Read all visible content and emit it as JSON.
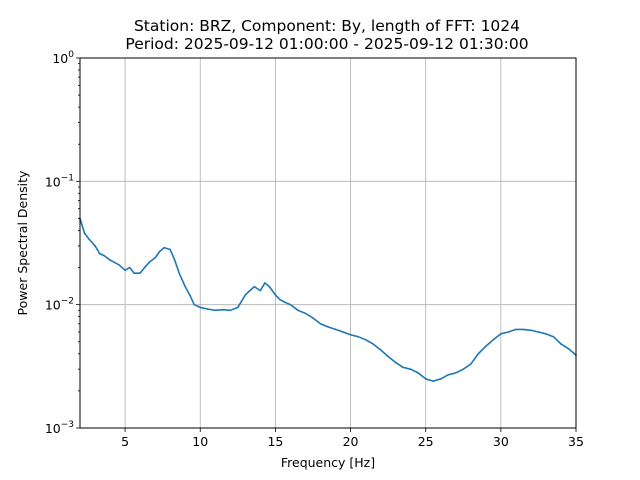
{
  "chart_data": {
    "type": "line",
    "title": "Station: BRZ, Component: By, length of FFT: 1024",
    "subtitle": "Period: 2025-09-12 01:00:00 - 2025-09-12 01:30:00",
    "xlabel": "Frequency [Hz]",
    "ylabel": "Power Spectral Density",
    "xlim": [
      2,
      35
    ],
    "ylim": [
      0.001,
      1
    ],
    "yscale": "log",
    "grid": true,
    "line_color": "#1f77b4",
    "x_ticks": [
      5,
      10,
      15,
      20,
      25,
      30,
      35
    ],
    "x_tick_labels": [
      "5",
      "10",
      "15",
      "20",
      "25",
      "30",
      "35"
    ],
    "y_ticks": [
      0.001,
      0.01,
      0.1,
      1
    ],
    "y_tick_labels": [
      {
        "base": "10",
        "exp": "−3"
      },
      {
        "base": "10",
        "exp": "−2"
      },
      {
        "base": "10",
        "exp": "−1"
      },
      {
        "base": "10",
        "exp": "0"
      }
    ],
    "series": [
      {
        "x": [
          2.0,
          2.3,
          2.6,
          3.0,
          3.3,
          3.6,
          4.0,
          4.3,
          4.6,
          5.0,
          5.3,
          5.6,
          6.0,
          6.3,
          6.6,
          7.0,
          7.3,
          7.6,
          8.0,
          8.3,
          8.6,
          9.0,
          9.3,
          9.6,
          10.0,
          10.5,
          11.0,
          11.5,
          12.0,
          12.5,
          13.0,
          13.3,
          13.6,
          14.0,
          14.3,
          14.6,
          15.0,
          15.3,
          15.6,
          16.0,
          16.5,
          17.0,
          17.5,
          18.0,
          18.5,
          19.0,
          19.5,
          20.0,
          20.5,
          21.0,
          21.5,
          22.0,
          22.5,
          23.0,
          23.5,
          24.0,
          24.5,
          25.0,
          25.5,
          26.0,
          26.5,
          27.0,
          27.5,
          28.0,
          28.5,
          29.0,
          29.5,
          30.0,
          30.5,
          31.0,
          31.5,
          32.0,
          32.5,
          33.0,
          33.5,
          34.0,
          34.5,
          35.0
        ],
        "y": [
          0.05,
          0.038,
          0.034,
          0.03,
          0.026,
          0.025,
          0.023,
          0.022,
          0.021,
          0.019,
          0.02,
          0.018,
          0.018,
          0.02,
          0.022,
          0.024,
          0.027,
          0.029,
          0.028,
          0.023,
          0.018,
          0.014,
          0.012,
          0.01,
          0.0095,
          0.0092,
          0.009,
          0.0091,
          0.009,
          0.0095,
          0.012,
          0.013,
          0.014,
          0.013,
          0.015,
          0.014,
          0.012,
          0.011,
          0.0105,
          0.01,
          0.009,
          0.0085,
          0.0078,
          0.007,
          0.0066,
          0.0063,
          0.006,
          0.0057,
          0.0055,
          0.0052,
          0.0048,
          0.0043,
          0.0038,
          0.0034,
          0.0031,
          0.003,
          0.0028,
          0.0025,
          0.0024,
          0.0025,
          0.0027,
          0.0028,
          0.003,
          0.0033,
          0.004,
          0.0046,
          0.0052,
          0.0058,
          0.006,
          0.0063,
          0.0063,
          0.0062,
          0.006,
          0.0058,
          0.0055,
          0.0048,
          0.0044,
          0.0039
        ]
      }
    ]
  }
}
